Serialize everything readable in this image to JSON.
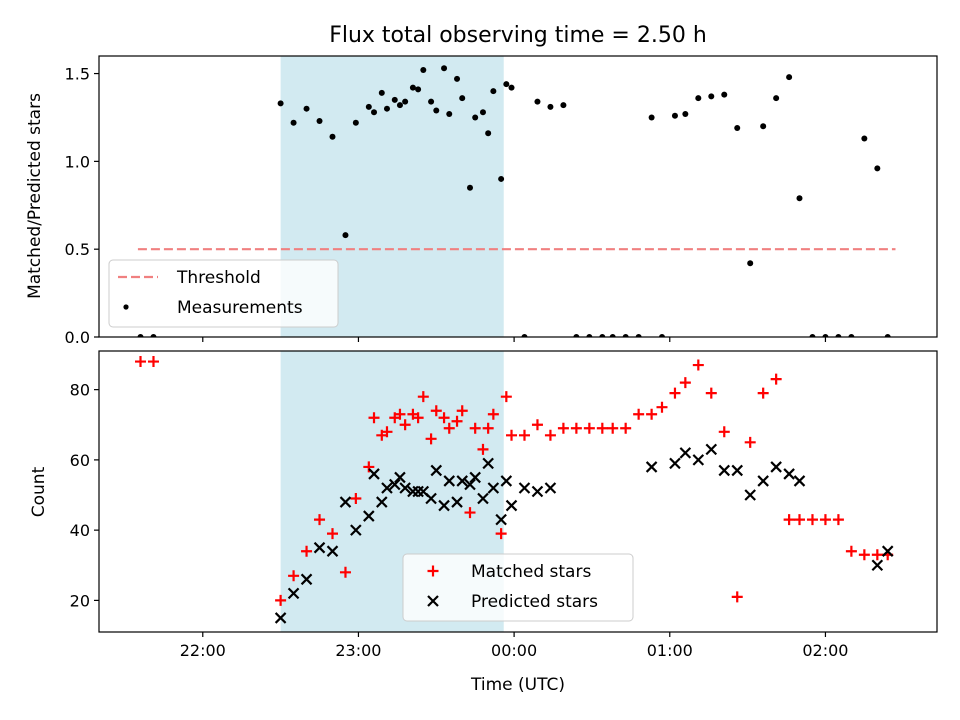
{
  "chart_data": [
    {
      "type": "scatter",
      "title": "Flux total observing time = 2.50 h",
      "xlabel": "",
      "ylabel": "Matched/Predicted stars",
      "ylim": [
        0,
        1.6
      ],
      "yticks": [
        0.0,
        0.5,
        1.0,
        1.5
      ],
      "ytick_labels": [
        "0.0",
        "0.5",
        "1.0",
        "1.5"
      ],
      "xlim": [
        "21:20",
        "02:43"
      ],
      "highlight_span": [
        "22:30",
        "23:56"
      ],
      "highlight_color": "#add8e6",
      "threshold": {
        "name": "Threshold",
        "y": 0.5,
        "x_start": "21:35",
        "x_end": "02:27",
        "color": "#f08080",
        "style": "dashed"
      },
      "legend_position": "lower left",
      "series": [
        {
          "name": "Measurements",
          "color": "#000000",
          "marker": "dot",
          "x": [
            "21:36",
            "21:41",
            "22:30",
            "22:35",
            "22:40",
            "22:45",
            "22:50",
            "22:55",
            "22:59",
            "23:04",
            "23:09",
            "23:14",
            "23:18",
            "23:23",
            "23:28",
            "23:33",
            "23:38",
            "23:43",
            "23:48",
            "23:52",
            "23:57",
            "23:06",
            "23:11",
            "23:16",
            "23:21",
            "23:25",
            "23:30",
            "23:35",
            "23:40",
            "23:45",
            "23:50",
            "23:55",
            "23:59",
            "00:04",
            "00:09",
            "00:14",
            "00:19",
            "00:24",
            "00:29",
            "00:34",
            "00:38",
            "00:43",
            "00:48",
            "00:53",
            "00:57",
            "01:02",
            "01:06",
            "01:11",
            "01:16",
            "01:21",
            "01:26",
            "01:31",
            "01:36",
            "01:41",
            "01:46",
            "01:50",
            "01:55",
            "02:00",
            "02:05",
            "02:10",
            "02:15",
            "02:20",
            "02:24"
          ],
          "values": [
            0.0,
            0.0,
            1.33,
            1.22,
            1.3,
            1.23,
            1.14,
            0.58,
            1.22,
            1.31,
            1.39,
            1.35,
            1.34,
            1.41,
            1.34,
            1.53,
            1.47,
            0.85,
            1.28,
            1.4,
            1.44,
            1.28,
            1.3,
            1.32,
            1.42,
            1.52,
            1.29,
            1.27,
            1.36,
            1.25,
            1.16,
            0.9,
            1.42,
            0.0,
            1.34,
            1.31,
            1.32,
            0.0,
            0.0,
            0.0,
            0.0,
            0.0,
            0.0,
            1.25,
            0.0,
            1.26,
            1.27,
            1.36,
            1.37,
            1.38,
            1.19,
            0.42,
            1.2,
            1.36,
            1.48,
            0.79,
            0.0,
            0.0,
            0.0,
            0.0,
            1.13,
            0.96,
            0.0
          ]
        }
      ]
    },
    {
      "type": "scatter",
      "title": "",
      "xlabel": "Time (UTC)",
      "ylabel": "Count",
      "ylim": [
        11,
        91
      ],
      "yticks": [
        20,
        40,
        60,
        80
      ],
      "ytick_labels": [
        "20",
        "40",
        "60",
        "80"
      ],
      "xtick_labels": [
        "22:00",
        "23:00",
        "00:00",
        "01:00",
        "02:00"
      ],
      "xlim": [
        "21:20",
        "02:43"
      ],
      "highlight_span": [
        "22:30",
        "23:56"
      ],
      "highlight_color": "#add8e6",
      "legend_position": "lower center",
      "series": [
        {
          "name": "Matched stars",
          "color": "#ff0000",
          "marker": "plus",
          "x": [
            "21:36",
            "21:41",
            "22:30",
            "22:35",
            "22:40",
            "22:45",
            "22:50",
            "22:55",
            "22:59",
            "23:04",
            "23:09",
            "23:14",
            "23:18",
            "23:23",
            "23:28",
            "23:33",
            "23:38",
            "23:43",
            "23:48",
            "23:52",
            "23:57",
            "23:06",
            "23:11",
            "23:16",
            "23:21",
            "23:25",
            "23:30",
            "23:35",
            "23:40",
            "23:45",
            "23:50",
            "23:55",
            "23:59",
            "00:04",
            "00:09",
            "00:14",
            "00:19",
            "00:24",
            "00:29",
            "00:34",
            "00:38",
            "00:43",
            "00:48",
            "00:53",
            "00:57",
            "01:02",
            "01:06",
            "01:11",
            "01:16",
            "01:21",
            "01:26",
            "01:31",
            "01:36",
            "01:41",
            "01:46",
            "01:50",
            "01:55",
            "02:00",
            "02:05",
            "02:10",
            "02:15",
            "02:20",
            "02:24"
          ],
          "values": [
            88,
            88,
            20,
            27,
            34,
            43,
            39,
            28,
            49,
            58,
            67,
            72,
            70,
            72,
            66,
            72,
            71,
            45,
            63,
            73,
            78,
            72,
            68,
            73,
            73,
            78,
            74,
            69,
            74,
            69,
            69,
            39,
            67,
            67,
            70,
            67,
            69,
            69,
            69,
            69,
            69,
            69,
            73,
            73,
            75,
            79,
            82,
            87,
            79,
            68,
            21,
            65,
            79,
            83,
            43,
            43,
            43,
            43,
            43,
            34,
            33,
            33,
            33
          ]
        },
        {
          "name": "Predicted stars",
          "color": "#000000",
          "marker": "x",
          "x": [
            "22:30",
            "22:35",
            "22:40",
            "22:45",
            "22:50",
            "22:55",
            "22:59",
            "23:04",
            "23:09",
            "23:14",
            "23:18",
            "23:23",
            "23:28",
            "23:33",
            "23:38",
            "23:43",
            "23:48",
            "23:52",
            "23:57",
            "23:06",
            "23:11",
            "23:16",
            "23:21",
            "23:25",
            "23:30",
            "23:35",
            "23:40",
            "23:45",
            "23:50",
            "23:55",
            "23:59",
            "00:04",
            "00:09",
            "00:14",
            "00:53",
            "01:02",
            "01:06",
            "01:11",
            "01:16",
            "01:21",
            "01:26",
            "01:31",
            "01:36",
            "01:41",
            "01:46",
            "01:50",
            "02:20",
            "02:24"
          ],
          "values": [
            15,
            22,
            26,
            35,
            34,
            48,
            40,
            44,
            48,
            53,
            52,
            51,
            49,
            47,
            48,
            53,
            49,
            52,
            54,
            56,
            52,
            55,
            51,
            51,
            57,
            54,
            54,
            55,
            59,
            43,
            47,
            52,
            51,
            52,
            58,
            59,
            62,
            60,
            63,
            57,
            57,
            50,
            54,
            58,
            56,
            54,
            30,
            34
          ]
        }
      ]
    }
  ]
}
